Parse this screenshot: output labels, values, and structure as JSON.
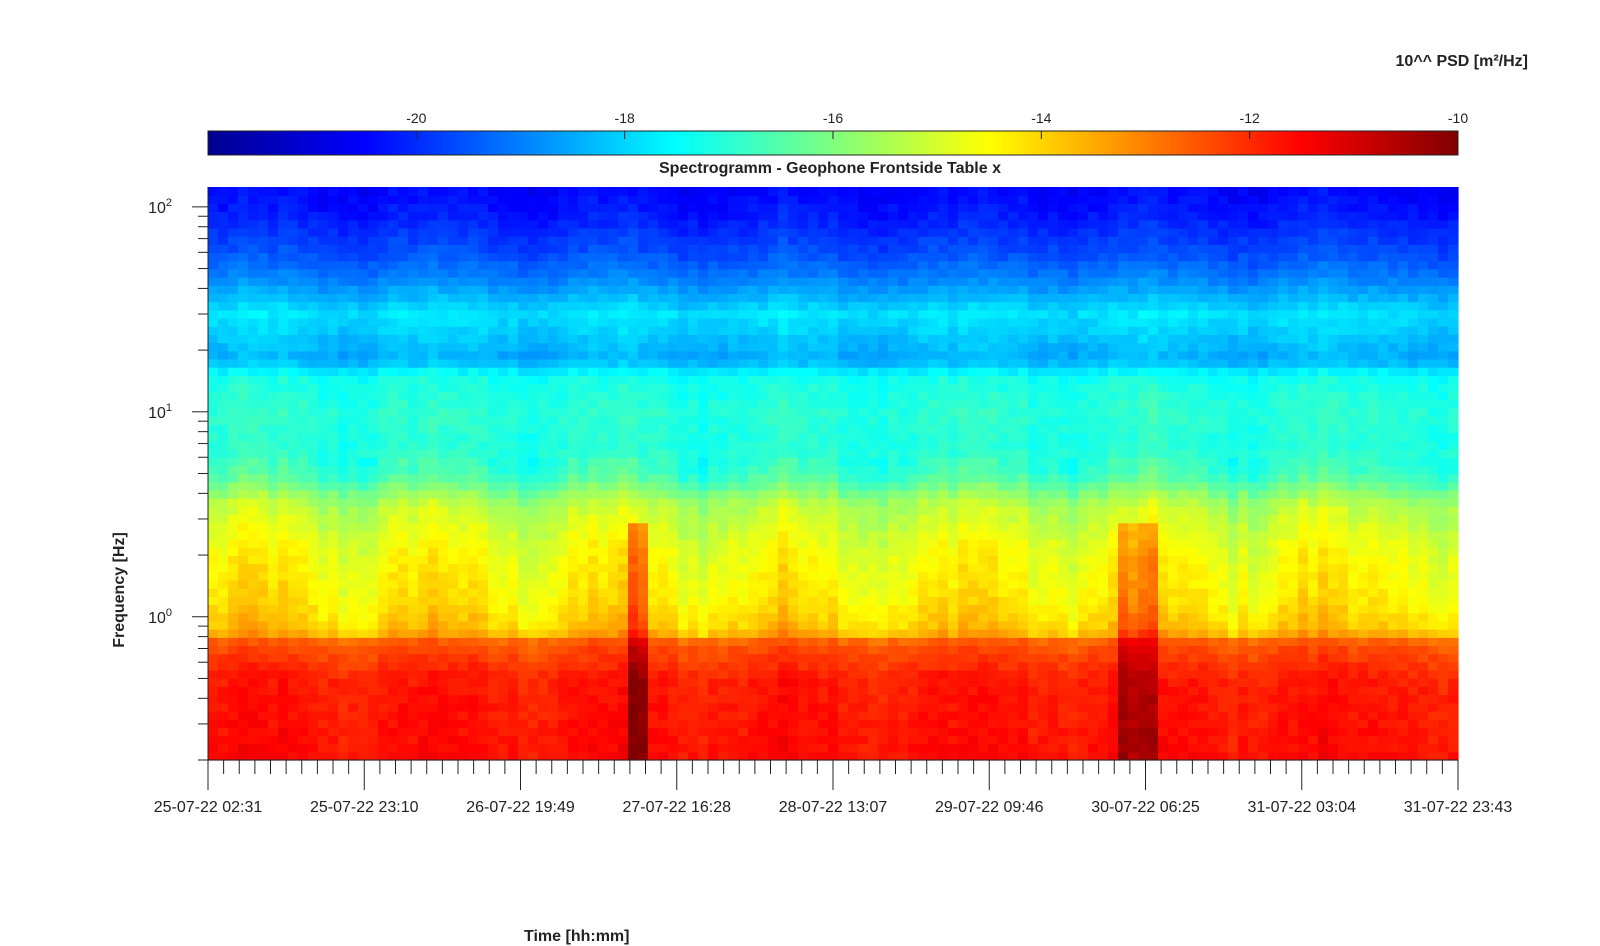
{
  "chart_data": {
    "type": "heatmap",
    "title": "Spectrogramm - Geophone Frontside Table x",
    "xlabel": "Time [hh:mm]",
    "ylabel": "Frequency [Hz]",
    "colorbar_label": "10^^ PSD [m²/Hz]",
    "colorbar_range": [
      -22,
      -10
    ],
    "colorbar_ticks": [
      -20,
      -18,
      -16,
      -14,
      -12,
      -10
    ],
    "colorbar_tick_labels": [
      "-20",
      "-18",
      "-16",
      "-14",
      "-12",
      "-10"
    ],
    "colormap": "jet",
    "y_scale": "log",
    "ylim": [
      0.2,
      125
    ],
    "y_ticks": [
      {
        "value": 1,
        "base": "10",
        "exp": "0"
      },
      {
        "value": 10,
        "base": "10",
        "exp": "1"
      },
      {
        "value": 100,
        "base": "10",
        "exp": "2"
      }
    ],
    "x_tick_labels": [
      "25-07-22 02:31",
      "25-07-22 23:10",
      "26-07-22 19:49",
      "27-07-22 16:28",
      "28-07-22 13:07",
      "29-07-22 09:46",
      "30-07-22 06:25",
      "31-07-22 03:04",
      "31-07-22 23:43"
    ],
    "x_minor_per_major": 10,
    "psd_profile": [
      {
        "f": 0.2,
        "psd": -11.6
      },
      {
        "f": 0.5,
        "psd": -11.8
      },
      {
        "f": 0.75,
        "psd": -12.5
      },
      {
        "f": 0.85,
        "psd": -13.8
      },
      {
        "f": 1.2,
        "psd": -14.3
      },
      {
        "f": 2.0,
        "psd": -14.6
      },
      {
        "f": 3.5,
        "psd": -15.3
      },
      {
        "f": 5.0,
        "psd": -16.8
      },
      {
        "f": 7.0,
        "psd": -17.1
      },
      {
        "f": 10.0,
        "psd": -17.0
      },
      {
        "f": 15.0,
        "psd": -17.3
      },
      {
        "f": 18.0,
        "psd": -18.5
      },
      {
        "f": 30.0,
        "psd": -17.8
      },
      {
        "f": 45.0,
        "psd": -19.0
      },
      {
        "f": 60.0,
        "psd": -19.6
      },
      {
        "f": 90.0,
        "psd": -20.2
      },
      {
        "f": 125.0,
        "psd": -20.5
      }
    ],
    "events": [
      {
        "x_frac": 0.341,
        "psd_boost": 1.5
      },
      {
        "x_frac": 0.727,
        "psd_boost": 1.2
      },
      {
        "x_frac": 0.74,
        "psd_boost": 1.0
      },
      {
        "x_frac": 0.752,
        "psd_boost": 1.0
      },
      {
        "x_frac": 0.999,
        "psd_boost": 1.0
      }
    ]
  }
}
